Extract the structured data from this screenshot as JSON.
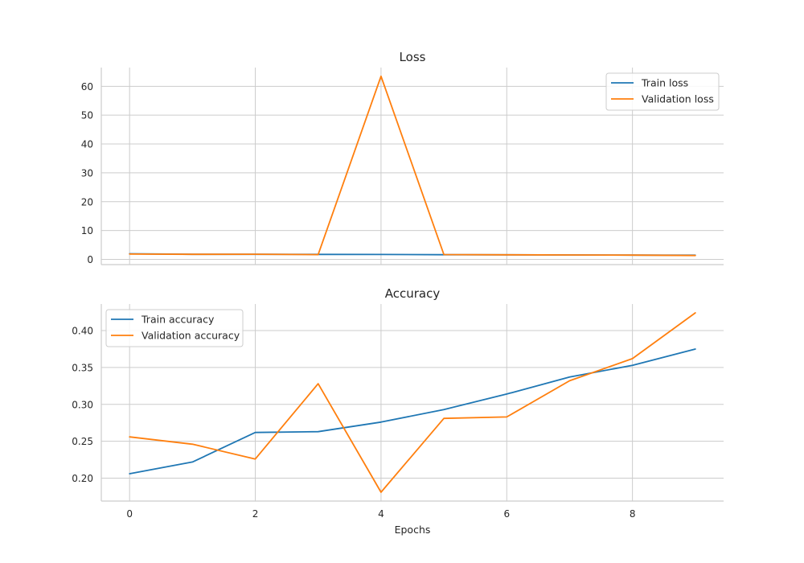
{
  "chart_data": [
    {
      "type": "line",
      "title": "Loss",
      "xlabel": "",
      "ylabel": "",
      "x": [
        0,
        1,
        2,
        3,
        4,
        5,
        6,
        7,
        8,
        9
      ],
      "xlim": [
        -0.45,
        9.45
      ],
      "xticks": [
        0,
        2,
        4,
        6,
        8
      ],
      "ylim": [
        -1.8,
        66.5
      ],
      "yticks": [
        0,
        10,
        20,
        30,
        40,
        50,
        60
      ],
      "grid": true,
      "legend": "top-right",
      "series": [
        {
          "name": "Train loss",
          "color": "#1f77b4",
          "values": [
            1.95,
            1.78,
            1.76,
            1.75,
            1.7,
            1.64,
            1.6,
            1.55,
            1.5,
            1.45
          ]
        },
        {
          "name": "Validation loss",
          "color": "#ff7f0e",
          "values": [
            1.85,
            1.76,
            1.8,
            1.65,
            63.5,
            1.68,
            1.6,
            1.55,
            1.5,
            1.35
          ]
        }
      ]
    },
    {
      "type": "line",
      "title": "Accuracy",
      "xlabel": "Epochs",
      "ylabel": "",
      "x": [
        0,
        1,
        2,
        3,
        4,
        5,
        6,
        7,
        8,
        9
      ],
      "xlim": [
        -0.45,
        9.45
      ],
      "xticks": [
        0,
        2,
        4,
        6,
        8
      ],
      "ylim": [
        0.169,
        0.436
      ],
      "yticks": [
        0.2,
        0.25,
        0.3,
        0.35,
        0.4
      ],
      "ytick_labels": [
        "0.20",
        "0.25",
        "0.30",
        "0.35",
        "0.40"
      ],
      "grid": true,
      "legend": "top-left",
      "series": [
        {
          "name": "Train accuracy",
          "color": "#1f77b4",
          "values": [
            0.206,
            0.222,
            0.262,
            0.263,
            0.276,
            0.293,
            0.314,
            0.337,
            0.353,
            0.375
          ]
        },
        {
          "name": "Validation accuracy",
          "color": "#ff7f0e",
          "values": [
            0.256,
            0.246,
            0.226,
            0.328,
            0.181,
            0.281,
            0.283,
            0.332,
            0.362,
            0.424
          ]
        }
      ]
    }
  ]
}
